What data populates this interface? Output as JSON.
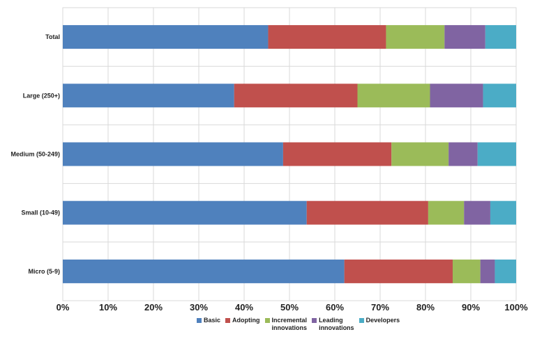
{
  "chart_data": {
    "type": "bar",
    "orientation": "horizontal",
    "stacked": "percent",
    "categories": [
      "Total",
      "Large (250+)",
      "Medium (50-249)",
      "Small (10-49)",
      "Micro (5-9)"
    ],
    "series": [
      {
        "name": "Basic",
        "color": "#4F81BD",
        "values": [
          45.3,
          37.8,
          48.6,
          53.8,
          62.1
        ]
      },
      {
        "name": "Adopting",
        "color": "#C0504D",
        "values": [
          26.0,
          27.2,
          23.9,
          26.8,
          23.9
        ]
      },
      {
        "name": "Incremental\ninnovations",
        "color": "#9BBB59",
        "values": [
          12.9,
          16.0,
          12.6,
          7.9,
          6.1
        ]
      },
      {
        "name": "Leading\ninnovations",
        "color": "#8064A2",
        "values": [
          9.0,
          11.7,
          6.4,
          5.8,
          3.2
        ]
      },
      {
        "name": "Developers",
        "color": "#4BACC6",
        "values": [
          6.8,
          7.3,
          8.5,
          5.7,
          4.7
        ]
      }
    ],
    "x_ticks": [
      "0%",
      "10%",
      "20%",
      "30%",
      "40%",
      "50%",
      "60%",
      "70%",
      "80%",
      "90%",
      "100%"
    ],
    "xlim": [
      0,
      100
    ],
    "grid": true,
    "legend_position": "bottom"
  }
}
